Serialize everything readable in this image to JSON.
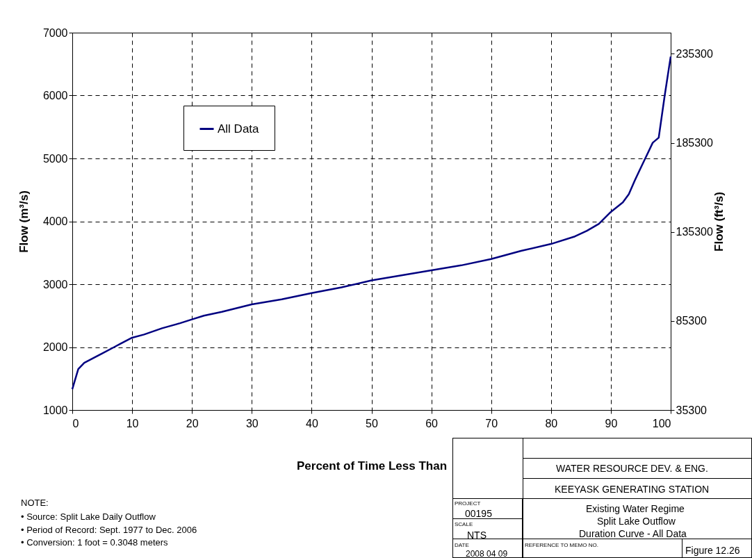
{
  "chart_data": {
    "type": "line",
    "xlabel": "Percent of Time Less Than",
    "ylabel": "Flow (m³/s)",
    "y2label": "Flow (ft³/s)",
    "x": [
      0,
      1,
      2,
      3,
      5,
      7,
      8,
      10,
      12,
      15,
      18,
      20,
      22,
      25,
      30,
      35,
      40,
      45,
      50,
      55,
      60,
      65,
      70,
      75,
      80,
      84,
      86,
      88,
      90,
      92,
      93,
      94,
      95,
      96,
      97,
      98,
      99,
      100
    ],
    "series": [
      {
        "name": "All Data",
        "color": "#000080",
        "values": [
          1330,
          1650,
          1750,
          1800,
          1900,
          2000,
          2050,
          2150,
          2200,
          2300,
          2380,
          2440,
          2500,
          2560,
          2680,
          2760,
          2860,
          2950,
          3060,
          3140,
          3220,
          3300,
          3400,
          3530,
          3640,
          3760,
          3850,
          3960,
          4150,
          4300,
          4430,
          4650,
          4850,
          5050,
          5250,
          5330,
          6000,
          6620
        ]
      }
    ],
    "xlim": [
      0,
      100
    ],
    "xticks": [
      0,
      10,
      20,
      30,
      40,
      50,
      60,
      70,
      80,
      90,
      100
    ],
    "ylim": [
      1000,
      7000
    ],
    "yticks": [
      1000,
      2000,
      3000,
      4000,
      5000,
      6000,
      7000
    ],
    "y2lim": [
      35300,
      247200
    ],
    "y2ticks": [
      35300,
      85300,
      135300,
      185300,
      235300
    ],
    "grid": true,
    "legend": "top left",
    "line_style": "solid",
    "marker": "none",
    "annotations": [
      "NOTE:",
      "• Source:  Split Lake Daily Outflow",
      "• Period of Record: Sept. 1977 to Dec. 2006",
      "• Conversion: 1 foot = 0.3048 meters",
      "WATER RESOURCE DEV. & ENG.",
      "KEEYASK GENERATING STATION",
      "PROJECT",
      "00195",
      "SCALE",
      "NTS",
      "DATE",
      "2008 04 09",
      "REFERENCE TO MEMO NO.",
      "Existing Water Regime",
      "Split Lake Outflow",
      "Duration Curve - All Data",
      "Figure 12.26"
    ]
  }
}
